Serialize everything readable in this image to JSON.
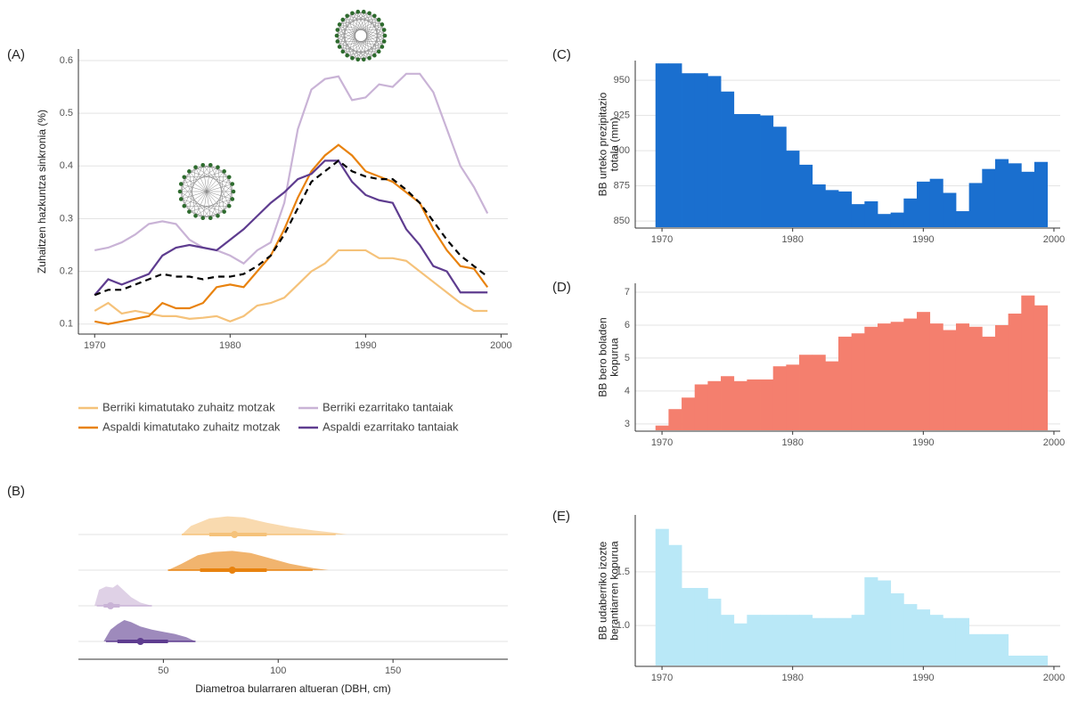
{
  "chart_data": [
    {
      "type": "line",
      "label": "(A)",
      "ylabel": "Zuhaitzen hazkuntza sinkronia (%)",
      "x": [
        1970,
        1971,
        1972,
        1973,
        1974,
        1975,
        1976,
        1977,
        1978,
        1979,
        1980,
        1981,
        1982,
        1983,
        1984,
        1985,
        1986,
        1987,
        1988,
        1989,
        1990,
        1991,
        1992,
        1993,
        1994,
        1995,
        1996,
        1997,
        1998,
        1999
      ],
      "xlim": [
        1968.8,
        2000.5
      ],
      "xticks": [
        1970,
        1980,
        1990,
        2000
      ],
      "ylim": [
        0.081,
        0.622
      ],
      "yticks": [
        0.1,
        0.2,
        0.3,
        0.4,
        0.5,
        0.6
      ],
      "grid": true,
      "legend_position": "bottom",
      "series": [
        {
          "name": "Berriki kimatutako zuhaitz motzak",
          "color": "#f5c27a",
          "values": [
            0.125,
            0.14,
            0.12,
            0.125,
            0.12,
            0.115,
            0.115,
            0.11,
            0.112,
            0.115,
            0.105,
            0.115,
            0.135,
            0.14,
            0.15,
            0.175,
            0.2,
            0.215,
            0.24,
            0.24,
            0.24,
            0.225,
            0.225,
            0.22,
            0.2,
            0.18,
            0.16,
            0.14,
            0.125,
            0.125
          ]
        },
        {
          "name": "Berriki ezarritako tantaiak",
          "color": "#c9b3d6",
          "values": [
            0.24,
            0.245,
            0.255,
            0.27,
            0.29,
            0.295,
            0.29,
            0.26,
            0.245,
            0.24,
            0.23,
            0.215,
            0.24,
            0.255,
            0.33,
            0.47,
            0.545,
            0.565,
            0.57,
            0.525,
            0.53,
            0.555,
            0.55,
            0.575,
            0.575,
            0.54,
            0.47,
            0.4,
            0.36,
            0.31
          ]
        },
        {
          "name": "Aspaldi kimatutako zuhaitz motzak",
          "color": "#e8820e",
          "values": [
            0.105,
            0.1,
            0.105,
            0.11,
            0.115,
            0.14,
            0.13,
            0.13,
            0.14,
            0.17,
            0.175,
            0.17,
            0.2,
            0.23,
            0.28,
            0.34,
            0.39,
            0.42,
            0.44,
            0.42,
            0.39,
            0.38,
            0.37,
            0.35,
            0.33,
            0.28,
            0.24,
            0.21,
            0.205,
            0.17
          ]
        },
        {
          "name": "Aspaldi ezarritako tantaiak",
          "color": "#5e3c8f",
          "values": [
            0.155,
            0.185,
            0.175,
            0.185,
            0.195,
            0.23,
            0.245,
            0.25,
            0.245,
            0.24,
            0.26,
            0.28,
            0.305,
            0.33,
            0.35,
            0.375,
            0.385,
            0.41,
            0.41,
            0.37,
            0.345,
            0.335,
            0.33,
            0.28,
            0.25,
            0.21,
            0.2,
            0.16,
            0.16,
            0.16
          ]
        },
        {
          "color": "#000000",
          "dashed": true,
          "values": [
            0.155,
            0.165,
            0.165,
            0.175,
            0.185,
            0.195,
            0.19,
            0.19,
            0.185,
            0.19,
            0.19,
            0.195,
            0.21,
            0.23,
            0.27,
            0.32,
            0.37,
            0.39,
            0.41,
            0.39,
            0.38,
            0.375,
            0.375,
            0.355,
            0.33,
            0.295,
            0.26,
            0.23,
            0.21,
            0.19
          ]
        }
      ]
    },
    {
      "type": "halfeye",
      "label": "(B)",
      "xlabel": "Diametroa bularraren altueran (DBH, cm)",
      "xlim": [
        13,
        200
      ],
      "xticks": [
        50,
        100,
        150
      ],
      "groups": [
        {
          "color": "#f5c27a",
          "median": 81,
          "interval_inner": [
            70,
            95
          ],
          "interval_outer": [
            58,
            125
          ],
          "density_x": [
            58,
            62,
            70,
            78,
            85,
            95,
            105,
            115,
            125,
            130
          ],
          "density_y": [
            0,
            0.4,
            0.75,
            0.85,
            0.8,
            0.55,
            0.35,
            0.2,
            0.08,
            0
          ]
        },
        {
          "color": "#e8820e",
          "median": 80,
          "interval_inner": [
            66,
            95
          ],
          "interval_outer": [
            52,
            115
          ],
          "density_x": [
            52,
            58,
            65,
            72,
            80,
            88,
            95,
            105,
            115,
            122
          ],
          "density_y": [
            0,
            0.3,
            0.7,
            0.85,
            0.9,
            0.8,
            0.6,
            0.3,
            0.1,
            0
          ]
        },
        {
          "color": "#c9b3d6",
          "median": 27,
          "interval_inner": [
            24,
            31
          ],
          "interval_outer": [
            21,
            45
          ],
          "density_x": [
            20,
            22,
            25,
            28,
            30,
            33,
            36,
            40,
            45
          ],
          "density_y": [
            0,
            0.75,
            0.9,
            0.85,
            1,
            0.7,
            0.4,
            0.15,
            0
          ]
        },
        {
          "color": "#5e3c8f",
          "median": 40,
          "interval_inner": [
            30,
            52
          ],
          "interval_outer": [
            25,
            64
          ],
          "density_x": [
            24,
            27,
            30,
            33,
            36,
            40,
            45,
            50,
            55,
            60,
            64
          ],
          "density_y": [
            0,
            0.55,
            0.8,
            1,
            0.9,
            0.7,
            0.55,
            0.45,
            0.35,
            0.2,
            0
          ]
        }
      ]
    },
    {
      "type": "step",
      "label": "(C)",
      "ylabel": [
        "BB urteko prezipitazio",
        "totala (mm)"
      ],
      "color": "#1a6fcf",
      "x": [
        1970,
        1971,
        1972,
        1973,
        1974,
        1975,
        1976,
        1977,
        1978,
        1979,
        1980,
        1981,
        1982,
        1983,
        1984,
        1985,
        1986,
        1987,
        1988,
        1989,
        1990,
        1991,
        1992,
        1993,
        1994,
        1995,
        1996,
        1997,
        1998,
        1999
      ],
      "values": [
        962,
        962,
        955,
        955,
        953,
        942,
        926,
        926,
        925,
        917,
        900,
        890,
        876,
        872,
        871,
        862,
        864,
        855,
        856,
        866,
        878,
        880,
        870,
        857,
        877,
        887,
        894,
        891,
        885,
        892
      ],
      "xlim": [
        1967.95,
        2000.48
      ],
      "xticks": [
        1970,
        1980,
        1990,
        2000
      ],
      "ylim": [
        845,
        964
      ],
      "yticks": [
        850,
        875,
        900,
        925,
        950
      ],
      "grid": true
    },
    {
      "type": "step",
      "label": "(D)",
      "ylabel": [
        "BB bero boladen",
        "kopurua"
      ],
      "color": "#f47f6e",
      "x": [
        1970,
        1971,
        1972,
        1973,
        1974,
        1975,
        1976,
        1977,
        1978,
        1979,
        1980,
        1981,
        1982,
        1983,
        1984,
        1985,
        1986,
        1987,
        1988,
        1989,
        1990,
        1991,
        1992,
        1993,
        1994,
        1995,
        1996,
        1997,
        1998,
        1999
      ],
      "values": [
        2.95,
        3.45,
        3.8,
        4.2,
        4.3,
        4.45,
        4.3,
        4.35,
        4.35,
        4.75,
        4.8,
        5.1,
        5.1,
        4.9,
        5.65,
        5.75,
        5.95,
        6.05,
        6.1,
        6.2,
        6.4,
        6.05,
        5.85,
        6.05,
        5.95,
        5.65,
        6.0,
        6.35,
        6.9,
        6.6
      ],
      "xlim": [
        1967.95,
        2000.48
      ],
      "xticks": [
        1970,
        1980,
        1990,
        2000
      ],
      "ylim": [
        2.78,
        7.27
      ],
      "yticks": [
        3,
        4,
        5,
        6,
        7
      ],
      "grid": true
    },
    {
      "type": "step",
      "label": "(E)",
      "ylabel": [
        "BB udaberriko izozte",
        "berantiarren kopurua"
      ],
      "color": "#b9e8f7",
      "x": [
        1970,
        1971,
        1972,
        1973,
        1974,
        1975,
        1976,
        1977,
        1978,
        1979,
        1980,
        1981,
        1982,
        1983,
        1984,
        1985,
        1986,
        1987,
        1988,
        1989,
        1990,
        1991,
        1992,
        1993,
        1994,
        1995,
        1996,
        1997,
        1998,
        1999
      ],
      "values": [
        1.9,
        1.75,
        1.35,
        1.35,
        1.25,
        1.1,
        1.02,
        1.1,
        1.1,
        1.1,
        1.1,
        1.1,
        1.07,
        1.07,
        1.07,
        1.1,
        1.45,
        1.42,
        1.3,
        1.2,
        1.15,
        1.1,
        1.07,
        1.07,
        0.92,
        0.92,
        0.92,
        0.72,
        0.72,
        0.72
      ],
      "xlim": [
        1967.95,
        2000.48
      ],
      "xticks": [
        1970,
        1980,
        1990,
        2000
      ],
      "ylim": [
        0.62,
        2.03
      ],
      "yticks": [
        {
          "value": 1,
          "label": "1.0"
        },
        1.5
      ],
      "grid": true
    }
  ]
}
